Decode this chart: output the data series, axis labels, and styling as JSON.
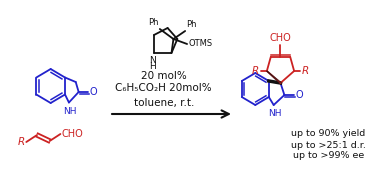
{
  "bg_color": "#ffffff",
  "catalyst_line1": "20 mol%",
  "catalyst_line2": "C₆H₅CO₂H 20mol%",
  "catalyst_line3": "toluene, r.t.",
  "result_line1": "up to 90% yield",
  "result_line2": "up to >25:1 d.r.",
  "result_line3": "up to >99% ee",
  "blue_color": "#2222cc",
  "red_color": "#cc2222",
  "black_color": "#111111"
}
